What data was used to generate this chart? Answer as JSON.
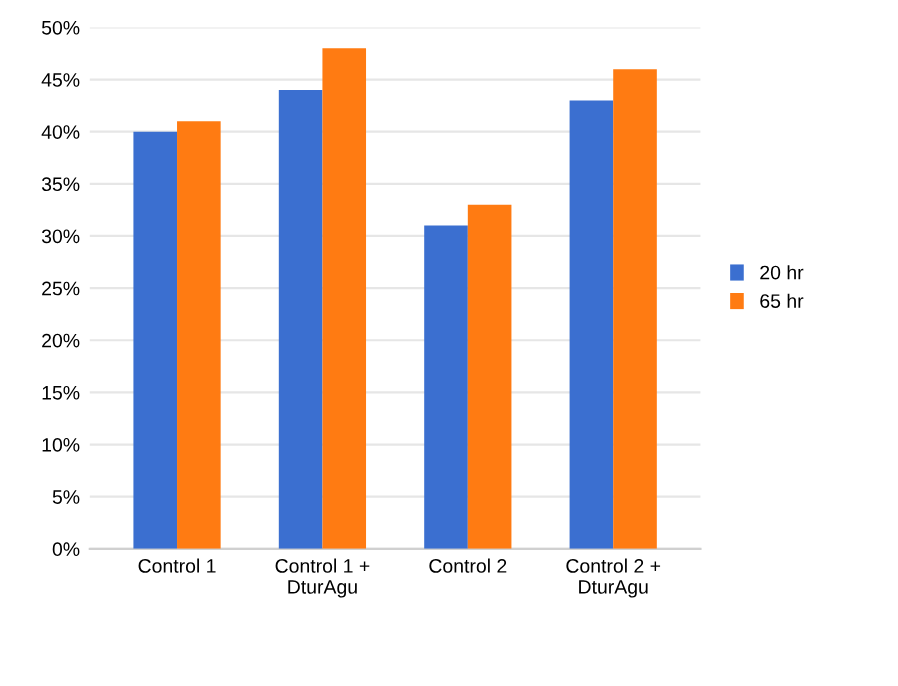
{
  "chart_data": {
    "type": "bar",
    "categories": [
      "Control 1",
      "Control 1 +\nDturAgu",
      "Control 2",
      "Control 2 +\nDturAgu"
    ],
    "series": [
      {
        "name": "20 hr",
        "color": "#3b6fd0",
        "values": [
          40,
          44,
          31,
          43
        ]
      },
      {
        "name": "65 hr",
        "color": "#ff7b12",
        "values": [
          41,
          48,
          33,
          46
        ]
      }
    ],
    "ylim": [
      0,
      50
    ],
    "yticks": [
      {
        "value": 0,
        "label": "0%"
      },
      {
        "value": 5,
        "label": "5%"
      },
      {
        "value": 10,
        "label": "10%"
      },
      {
        "value": 15,
        "label": "15%"
      },
      {
        "value": 20,
        "label": "20%"
      },
      {
        "value": 25,
        "label": "25%"
      },
      {
        "value": 30,
        "label": "30%"
      },
      {
        "value": 35,
        "label": "35%"
      },
      {
        "value": 40,
        "label": "40%"
      },
      {
        "value": 45,
        "label": "45%"
      },
      {
        "value": 50,
        "label": "50%"
      }
    ],
    "grid": "y",
    "legend": "right"
  }
}
